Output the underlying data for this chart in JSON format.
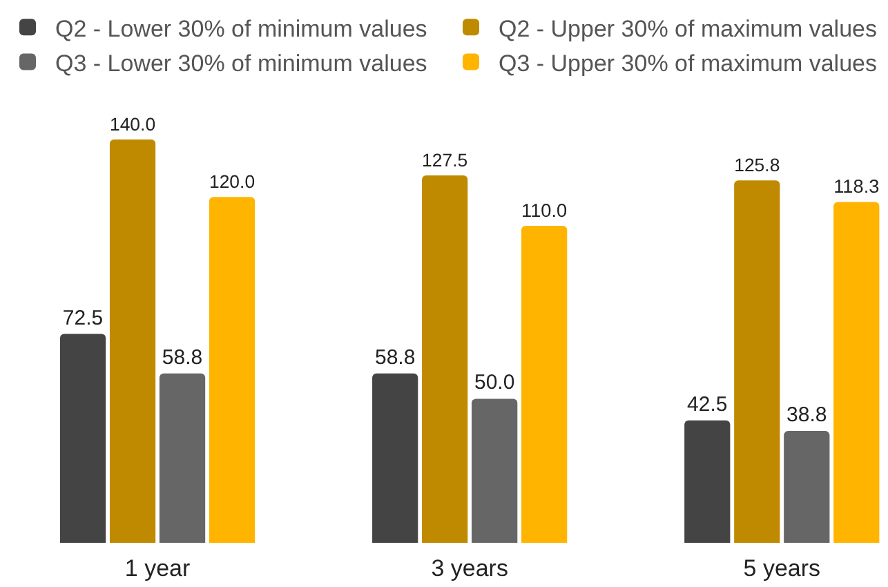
{
  "chart_data": {
    "type": "bar",
    "categories": [
      "1 year",
      "3 years",
      "5 years"
    ],
    "series": [
      {
        "name": "Q2 - Lower 30% of minimum values",
        "color": "#444444",
        "values": [
          72.5,
          58.8,
          42.5
        ],
        "value_labels": [
          "72.5",
          "58.8",
          "42.5"
        ]
      },
      {
        "name": "Q2 - Upper 30% of maximum values",
        "color": "#c08a00",
        "values": [
          140.0,
          127.5,
          125.8
        ],
        "value_labels": [
          "140.0",
          "127.5",
          "125.8"
        ]
      },
      {
        "name": "Q3 - Lower 30% of minimum values",
        "color": "#666666",
        "values": [
          58.8,
          50.0,
          38.8
        ],
        "value_labels": [
          "58.8",
          "50.0",
          "38.8"
        ]
      },
      {
        "name": "Q3 - Upper 30% of maximum values",
        "color": "#ffb400",
        "values": [
          120.0,
          110.0,
          118.3
        ],
        "value_labels": [
          "120.0",
          "110.0",
          "118.3"
        ]
      }
    ],
    "legend": "top"
  }
}
